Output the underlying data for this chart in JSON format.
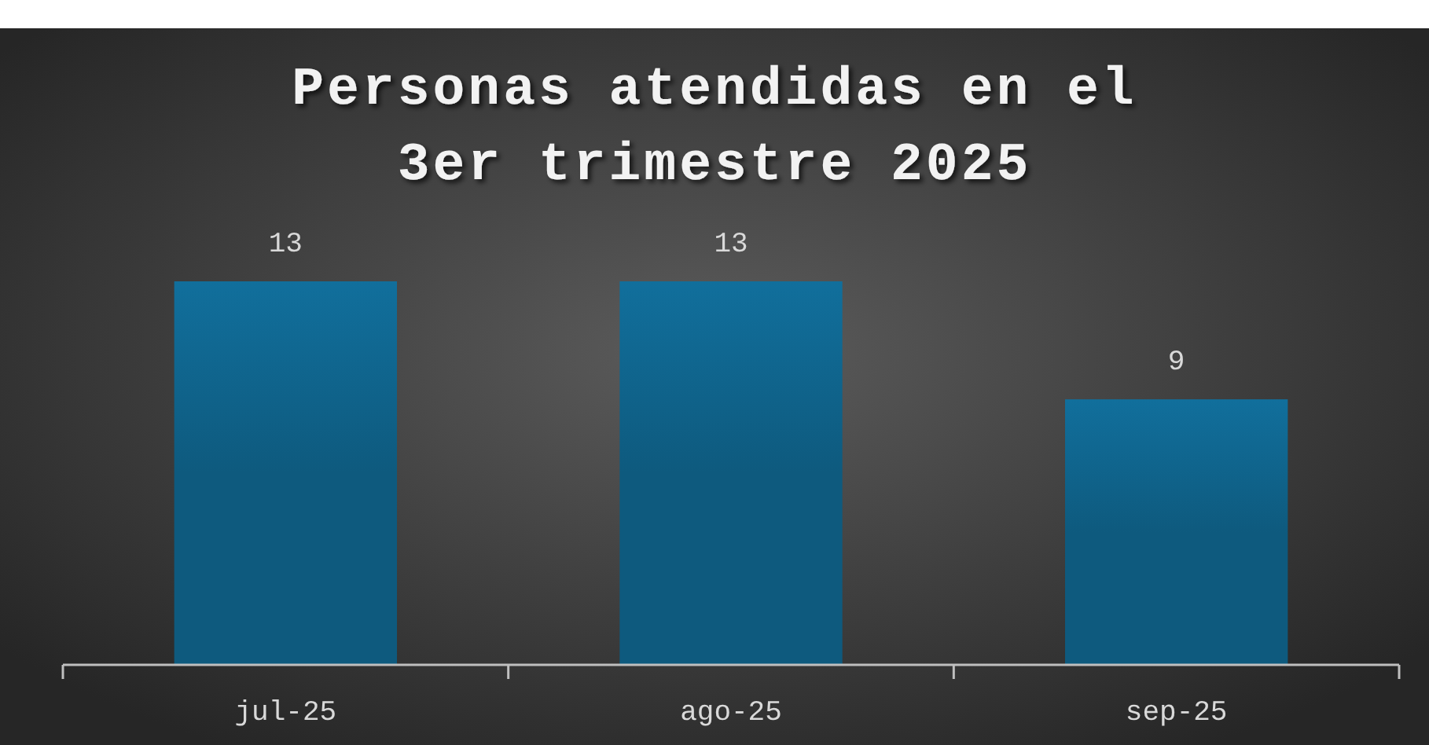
{
  "chart_data": {
    "type": "bar",
    "title": "Personas atendidas en el 3er trimestre 2025",
    "categories": [
      "jul-25",
      "ago-25",
      "sep-25"
    ],
    "values": [
      13,
      13,
      9
    ],
    "color": "#0e5a7e",
    "data_labels": true
  }
}
